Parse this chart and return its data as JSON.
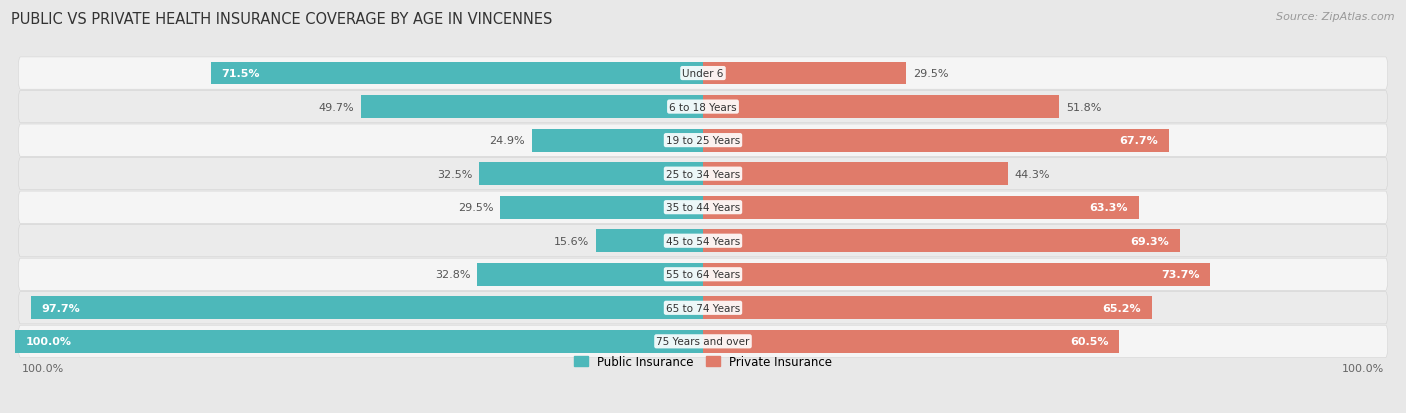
{
  "title": "PUBLIC VS PRIVATE HEALTH INSURANCE COVERAGE BY AGE IN VINCENNES",
  "source": "Source: ZipAtlas.com",
  "categories": [
    "Under 6",
    "6 to 18 Years",
    "19 to 25 Years",
    "25 to 34 Years",
    "35 to 44 Years",
    "45 to 54 Years",
    "55 to 64 Years",
    "65 to 74 Years",
    "75 Years and over"
  ],
  "public_values": [
    71.5,
    49.7,
    24.9,
    32.5,
    29.5,
    15.6,
    32.8,
    97.7,
    100.0
  ],
  "private_values": [
    29.5,
    51.8,
    67.7,
    44.3,
    63.3,
    69.3,
    73.7,
    65.2,
    60.5
  ],
  "public_color": "#4db8ba",
  "private_color": "#e07b6a",
  "public_color_light": "#a8dede",
  "private_color_light": "#f0b8ae",
  "bg_color": "#e8e8e8",
  "row_bg_odd": "#f5f5f5",
  "row_bg_even": "#ebebeb",
  "max_value": 100.0,
  "label_axis_left": "100.0%",
  "label_axis_right": "100.0%",
  "legend_public": "Public Insurance",
  "legend_private": "Private Insurance",
  "title_fontsize": 10.5,
  "source_fontsize": 8,
  "bar_label_fontsize": 8,
  "category_fontsize": 7.5,
  "axis_label_fontsize": 8
}
